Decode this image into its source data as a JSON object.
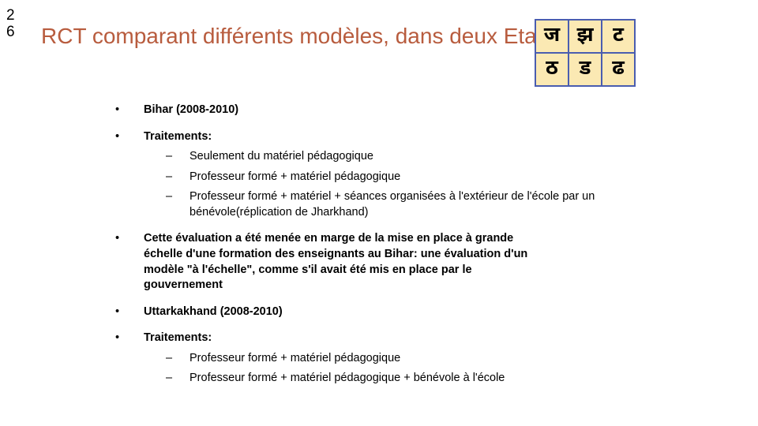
{
  "slide_number": "2\n6",
  "title": "RCT comparant différents modèles, dans deux Etats",
  "hindi_grid": {
    "cell_0_0": "ज",
    "cell_0_1": "झ",
    "cell_0_2": "ट",
    "cell_1_0": "ठ",
    "cell_1_1": "ड",
    "cell_1_2": "ढ",
    "bg_color": "#fbe9b3",
    "border_color": "#4a5db0"
  },
  "bullets": {
    "b1": "Bihar (2008-2010)",
    "b2": "Traitements:",
    "b2_sub1": "Seulement du matériel pédagogique",
    "b2_sub2": "Professeur formé + matériel pédagogique",
    "b2_sub3": "Professeur formé + matériel + séances organisées à l'extérieur de l'école par un bénévole(réplication de Jharkhand)",
    "b3": "Cette évaluation a été menée en marge de la mise en place à grande échelle d'une formation des enseignants au Bihar: une évaluation d'un modèle \"à l'échelle\", comme s'il avait été mis en place par le gouvernement",
    "b4": "Uttarkakhand (2008-2010)",
    "b5": "Traitements:",
    "b5_sub1": "Professeur formé + matériel pédagogique",
    "b5_sub2": "Professeur formé + matériel pédagogique + bénévole à l'école"
  },
  "colors": {
    "title": "#b85c3e",
    "text": "#000000",
    "background": "#ffffff"
  }
}
